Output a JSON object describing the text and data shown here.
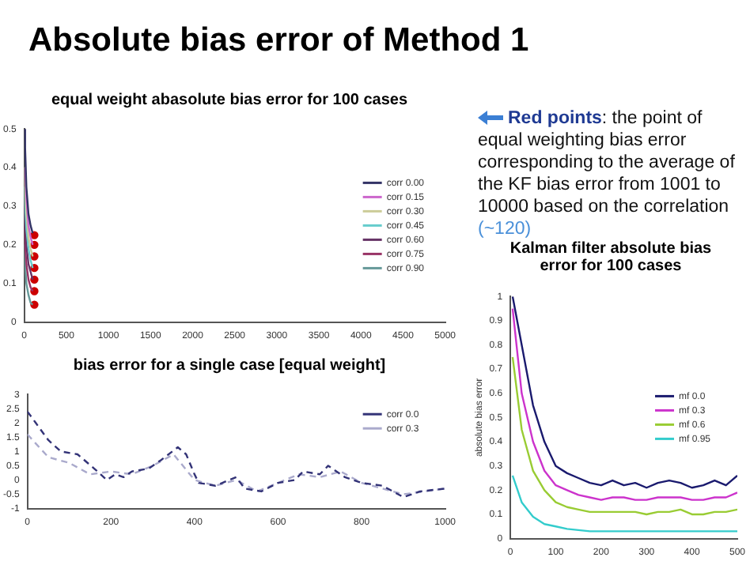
{
  "chart_data": [
    {
      "type": "other",
      "title": "Absolute bias error of Method 1",
      "annotations": [
        "Red points",
        ": the point of equal weighting bias error corresponding to the average of the KF bias error from 1001 to 10000 based on the correlation ",
        "(~120)"
      ]
    },
    {
      "type": "line",
      "title": "equal weight abasolute bias error for 100 cases",
      "x": [
        1,
        10,
        25,
        50,
        75,
        100
      ],
      "xlim": [
        0,
        5000
      ],
      "xticks": [
        0,
        500,
        1000,
        1500,
        2000,
        2500,
        3000,
        3500,
        4000,
        4500,
        5000
      ],
      "ylim": [
        0,
        0.5
      ],
      "yticks": [
        0,
        0.1,
        0.2,
        0.3,
        0.4,
        0.5
      ],
      "grid": false,
      "legend": "right",
      "series": [
        {
          "name": "corr 0.00",
          "color": "#333366",
          "values": [
            0.5,
            0.45,
            0.35,
            0.28,
            0.25,
            0.23
          ]
        },
        {
          "name": "corr 0.15",
          "color": "#cc66cc",
          "values": [
            null,
            0.4,
            0.32,
            0.25,
            0.22,
            0.2
          ]
        },
        {
          "name": "corr 0.30",
          "color": "#cccc99",
          "values": [
            0.4,
            0.35,
            0.28,
            0.22,
            0.19,
            0.17
          ]
        },
        {
          "name": "corr 0.45",
          "color": "#66cccc",
          "values": [
            0.35,
            0.3,
            0.24,
            0.19,
            0.16,
            0.14
          ]
        },
        {
          "name": "corr 0.60",
          "color": "#663366",
          "values": [
            0.3,
            0.25,
            0.2,
            0.15,
            0.13,
            0.11
          ]
        },
        {
          "name": "corr 0.75",
          "color": "#993366",
          "values": [
            0.25,
            0.2,
            0.15,
            0.11,
            0.09,
            0.08
          ]
        },
        {
          "name": "corr 0.90",
          "color": "#669999",
          "values": [
            0.2,
            0.15,
            0.1,
            0.07,
            0.05,
            0.045
          ]
        },
        {
          "type": "scatter",
          "marker": "circle",
          "color": "#cc0000",
          "x": [
            120,
            120,
            120,
            120,
            120,
            120,
            120
          ],
          "values": [
            0.225,
            0.2,
            0.17,
            0.14,
            0.11,
            0.08,
            0.045
          ]
        }
      ]
    },
    {
      "type": "line",
      "title": "bias error for a single case [equal weight]",
      "xlim": [
        0,
        1000
      ],
      "xticks": [
        0,
        200,
        400,
        600,
        800,
        1000
      ],
      "ylim": [
        -1,
        3
      ],
      "yticks": [
        -1,
        -0.5,
        0,
        0.5,
        1,
        1.5,
        2,
        2.5,
        3
      ],
      "grid": false,
      "legend": "top right",
      "line_style": "dashed",
      "series": [
        {
          "name": "corr 0.0",
          "color": "#333377",
          "x": [
            0,
            20,
            50,
            80,
            120,
            160,
            190,
            210,
            230,
            250,
            290,
            320,
            360,
            380,
            400,
            410,
            450,
            500,
            520,
            560,
            600,
            640,
            660,
            700,
            720,
            760,
            800,
            850,
            900,
            940,
            1000
          ],
          "values": [
            2.4,
            2.0,
            1.4,
            1.0,
            0.9,
            0.4,
            0.0,
            0.2,
            0.1,
            0.3,
            0.4,
            0.7,
            1.15,
            0.9,
            0.2,
            -0.1,
            -0.2,
            0.1,
            -0.3,
            -0.4,
            -0.1,
            0.0,
            0.3,
            0.2,
            0.5,
            0.1,
            -0.1,
            -0.2,
            -0.6,
            -0.4,
            -0.3
          ]
        },
        {
          "name": "corr 0.3",
          "color": "#aaaacc",
          "x": [
            0,
            50,
            100,
            150,
            200,
            250,
            300,
            350,
            400,
            450,
            500,
            550,
            600,
            650,
            700,
            750,
            800,
            850,
            900,
            950,
            1000
          ],
          "values": [
            1.6,
            0.8,
            0.6,
            0.2,
            0.3,
            0.2,
            0.5,
            0.9,
            0.0,
            -0.2,
            0.0,
            -0.4,
            -0.1,
            0.2,
            0.1,
            0.3,
            -0.1,
            -0.3,
            -0.5,
            -0.4,
            -0.3
          ]
        }
      ]
    },
    {
      "type": "line",
      "title": "Kalman filter absolute bias error for 100 cases",
      "ylabel": "absolute bias error",
      "x": [
        5,
        25,
        50,
        75,
        100,
        125,
        150,
        175,
        200,
        225,
        250,
        275,
        300,
        325,
        350,
        375,
        400,
        425,
        450,
        475,
        500
      ],
      "xlim": [
        0,
        500
      ],
      "xticks": [
        0,
        100,
        200,
        300,
        400,
        500
      ],
      "ylim": [
        0,
        1
      ],
      "yticks": [
        0,
        0.1,
        0.2,
        0.3,
        0.4,
        0.5,
        0.6,
        0.7,
        0.8,
        0.9,
        1
      ],
      "grid": false,
      "legend": "right",
      "series": [
        {
          "name": "mf 0.0",
          "color": "#1a1a6e",
          "values": [
            1.0,
            0.8,
            0.55,
            0.4,
            0.3,
            0.27,
            0.25,
            0.23,
            0.22,
            0.24,
            0.22,
            0.23,
            0.21,
            0.23,
            0.24,
            0.23,
            0.21,
            0.22,
            0.24,
            0.22,
            0.26
          ]
        },
        {
          "name": "mf 0.3",
          "color": "#cc33cc",
          "values": [
            0.95,
            0.6,
            0.4,
            0.28,
            0.22,
            0.2,
            0.18,
            0.17,
            0.16,
            0.17,
            0.17,
            0.16,
            0.16,
            0.17,
            0.17,
            0.17,
            0.16,
            0.16,
            0.17,
            0.17,
            0.19
          ]
        },
        {
          "name": "mf 0.6",
          "color": "#99cc33",
          "values": [
            0.75,
            0.45,
            0.28,
            0.2,
            0.15,
            0.13,
            0.12,
            0.11,
            0.11,
            0.11,
            0.11,
            0.11,
            0.1,
            0.11,
            0.11,
            0.12,
            0.1,
            0.1,
            0.11,
            0.11,
            0.12
          ]
        },
        {
          "name": "mf 0.95",
          "color": "#33cccc",
          "values": [
            0.26,
            0.15,
            0.09,
            0.06,
            0.05,
            0.04,
            0.035,
            0.03,
            0.03,
            0.03,
            0.03,
            0.03,
            0.03,
            0.03,
            0.03,
            0.03,
            0.03,
            0.03,
            0.03,
            0.03,
            0.03
          ]
        }
      ]
    }
  ]
}
